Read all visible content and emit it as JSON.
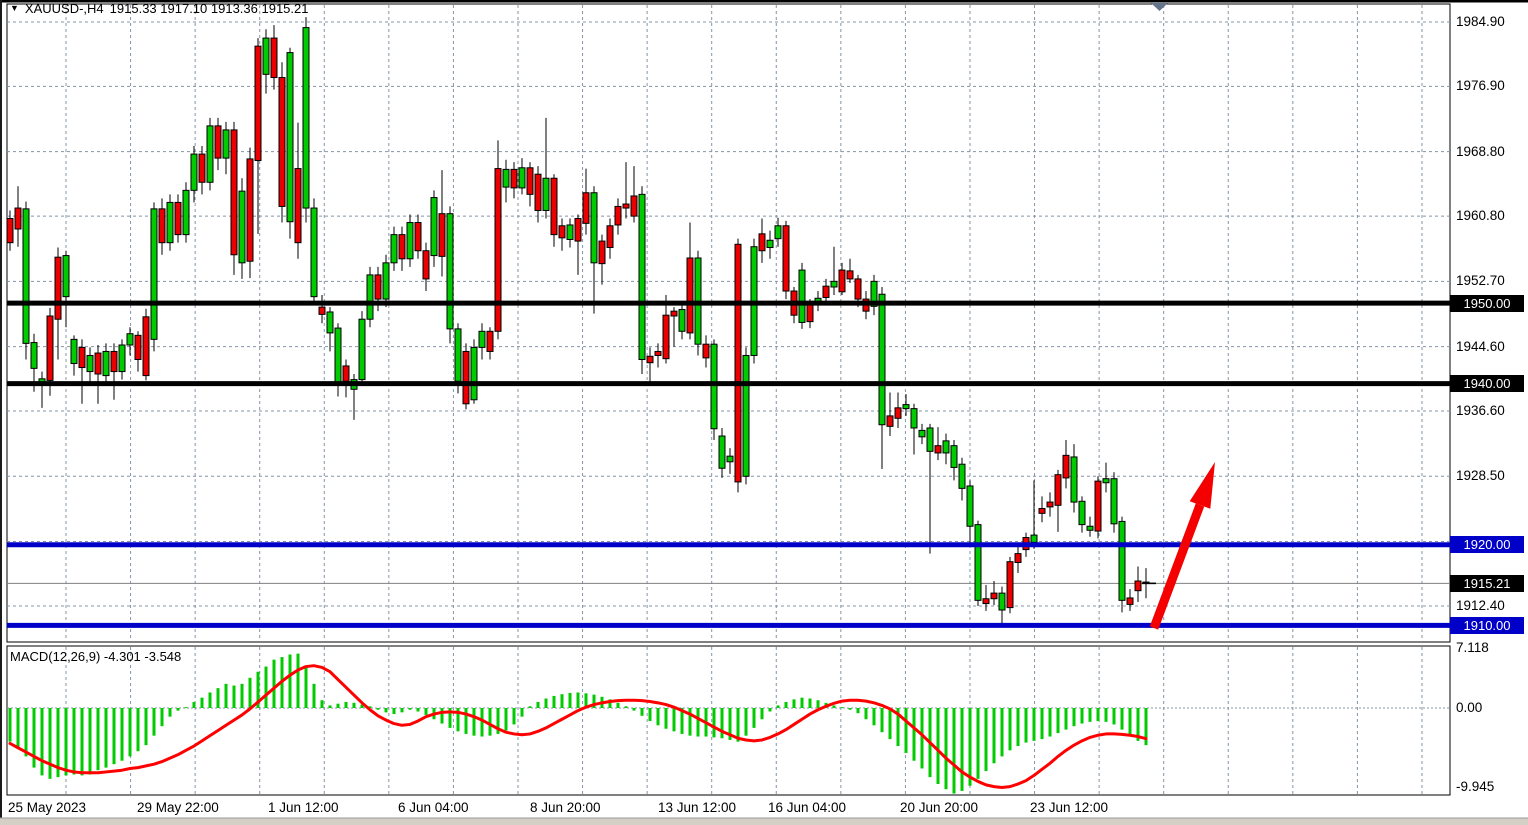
{
  "window": {
    "title_symbol": "XAUUSD-,H4",
    "title_ohlc": "1915.33 1917.10 1913.36 1915.21"
  },
  "indicator_caption": "MACD(12,26,9) -4.301 -3.548",
  "price_axis": {
    "ticks": [
      "1984.90",
      "1976.90",
      "1968.80",
      "1960.80",
      "1952.70",
      "1944.60",
      "1936.60",
      "1928.50",
      "1920.40",
      "1912.40"
    ],
    "badges": [
      {
        "label": "1950.00",
        "type": "black"
      },
      {
        "label": "1940.00",
        "type": "black"
      },
      {
        "label": "1920.00",
        "type": "blue"
      },
      {
        "label": "1915.21",
        "type": "black"
      },
      {
        "label": "1910.00",
        "type": "blue"
      }
    ]
  },
  "macd_axis": {
    "ticks": [
      "7.118",
      "0.00",
      "-9.945"
    ]
  },
  "time_axis": {
    "labels": [
      "25 May 2023",
      "29 May 22:00",
      "1 Jun 12:00",
      "6 Jun 04:00",
      "8 Jun 20:00",
      "13 Jun 12:00",
      "16 Jun 04:00",
      "20 Jun 20:00",
      "23 Jun 12:00"
    ]
  },
  "colors": {
    "bull": "#00CB00",
    "bear": "#EA0000",
    "wick": "#000000",
    "grid": "#8494A8",
    "blue_line": "#0000C8",
    "black_line": "#000000",
    "signal": "#FF0000",
    "arrow": "#F40000",
    "current_price_line": "#808080",
    "scroll_marker": "#64748B"
  },
  "chart_data": {
    "type": "candlestick",
    "symbol": "XAUUSD-",
    "timeframe": "H4",
    "title": "XAUUSD-,H4 1915.33 1917.10 1913.36 1915.21",
    "current_bar": {
      "open": 1915.33,
      "high": 1917.1,
      "low": 1913.36,
      "close": 1915.21
    },
    "price_ylim": [
      1907.93,
      1987.13
    ],
    "price_tick_values": [
      1984.9,
      1976.9,
      1968.8,
      1960.8,
      1952.7,
      1944.6,
      1936.6,
      1928.5,
      1920.4,
      1912.4
    ],
    "hlines": [
      {
        "price": 1950.0,
        "color": "black",
        "label": "1950.00"
      },
      {
        "price": 1940.0,
        "color": "black",
        "label": "1940.00"
      },
      {
        "price": 1920.0,
        "color": "blue",
        "label": "1920.00"
      },
      {
        "price": 1910.0,
        "color": "blue",
        "label": "1910.00"
      }
    ],
    "current_price": 1915.21,
    "annotations": [
      {
        "type": "arrow-up-right",
        "from_price_area": "1910 support",
        "note": "bullish arrow"
      }
    ],
    "x_tick_labels": [
      "25 May 2023",
      "29 May 22:00",
      "1 Jun 12:00",
      "6 Jun 04:00",
      "8 Jun 20:00",
      "13 Jun 12:00",
      "16 Jun 04:00",
      "20 Jun 20:00",
      "23 Jun 12:00"
    ],
    "candles": [
      [
        1960.5,
        1961.5,
        1956.5,
        1957.5
      ],
      [
        1961.8,
        1964.5,
        1957.0,
        1959.2
      ],
      [
        1945.0,
        1962.6,
        1943.0,
        1961.7
      ],
      [
        1941.9,
        1946.2,
        1939.0,
        1945.1
      ],
      [
        1940.0,
        1941.5,
        1937.0,
        1940.6
      ],
      [
        1948.4,
        1949.4,
        1938.5,
        1940.4
      ],
      [
        1955.7,
        1956.9,
        1943.0,
        1948.0
      ],
      [
        1950.8,
        1956.5,
        1947.0,
        1955.9
      ],
      [
        1942.5,
        1946.0,
        1941.0,
        1945.5
      ],
      [
        1944.5,
        1945.5,
        1937.5,
        1942.0
      ],
      [
        1941.5,
        1944.5,
        1940.0,
        1943.5
      ],
      [
        1943.8,
        1944.8,
        1937.5,
        1941.2
      ],
      [
        1941.0,
        1945.0,
        1940.0,
        1944.0
      ],
      [
        1944.0,
        1945.0,
        1938.0,
        1941.5
      ],
      [
        1941.5,
        1945.5,
        1940.5,
        1944.8
      ],
      [
        1944.8,
        1947.0,
        1943.5,
        1946.2
      ],
      [
        1946.0,
        1946.5,
        1941.5,
        1943.0
      ],
      [
        1948.3,
        1949.3,
        1940.4,
        1941.0
      ],
      [
        1945.5,
        1962.5,
        1944.0,
        1961.7
      ],
      [
        1961.7,
        1963.0,
        1956.0,
        1957.5
      ],
      [
        1957.5,
        1963.5,
        1956.5,
        1962.5
      ],
      [
        1962.5,
        1963.5,
        1957.5,
        1958.5
      ],
      [
        1958.5,
        1965.0,
        1957.5,
        1964.0
      ],
      [
        1964.0,
        1969.5,
        1962.5,
        1968.5
      ],
      [
        1968.5,
        1969.5,
        1963.5,
        1965.0
      ],
      [
        1965.0,
        1973.0,
        1964.0,
        1972.0
      ],
      [
        1972.0,
        1973.0,
        1966.5,
        1968.0
      ],
      [
        1968.0,
        1972.5,
        1966.0,
        1971.5
      ],
      [
        1971.5,
        1972.5,
        1953.5,
        1956.0
      ],
      [
        1955.0,
        1965.5,
        1953.0,
        1963.9
      ],
      [
        1967.9,
        1969.3,
        1953.1,
        1955.2
      ],
      [
        1981.9,
        1982.9,
        1958.6,
        1967.7
      ],
      [
        1978.4,
        1984.0,
        1976.0,
        1982.9
      ],
      [
        1982.9,
        1984.5,
        1976.5,
        1978.0
      ],
      [
        1978.0,
        1979.9,
        1960.0,
        1962.0
      ],
      [
        1960.1,
        1981.7,
        1958.0,
        1981.1
      ],
      [
        1966.7,
        1972.4,
        1955.5,
        1957.5
      ],
      [
        1961.8,
        1985.5,
        1960.0,
        1984.2
      ],
      [
        1950.8,
        1963.0,
        1950.0,
        1961.8
      ],
      [
        1949.5,
        1951.0,
        1947.5,
        1948.6
      ],
      [
        1946.3,
        1949.5,
        1944.0,
        1948.9
      ],
      [
        1940.2,
        1947.5,
        1938.4,
        1946.9
      ],
      [
        1942.2,
        1943.0,
        1938.3,
        1940.3
      ],
      [
        1939.3,
        1941.2,
        1935.5,
        1940.5
      ],
      [
        1940.5,
        1949.0,
        1940.0,
        1948.0
      ],
      [
        1948.0,
        1954.5,
        1947.0,
        1953.5
      ],
      [
        1953.5,
        1954.5,
        1949.0,
        1950.5
      ],
      [
        1950.5,
        1956.0,
        1949.5,
        1955.0
      ],
      [
        1955.0,
        1959.5,
        1954.0,
        1958.5
      ],
      [
        1958.5,
        1959.5,
        1954.0,
        1955.5
      ],
      [
        1955.5,
        1961.0,
        1954.5,
        1960.0
      ],
      [
        1960.0,
        1961.0,
        1955.5,
        1956.5
      ],
      [
        1956.5,
        1957.5,
        1951.5,
        1953.0
      ],
      [
        1955.9,
        1964.0,
        1954.5,
        1963.1
      ],
      [
        1961.1,
        1966.5,
        1953.3,
        1955.8
      ],
      [
        1946.8,
        1962.0,
        1945.0,
        1961.1
      ],
      [
        1940.3,
        1947.5,
        1938.8,
        1946.8
      ],
      [
        1944.0,
        1945.0,
        1936.8,
        1937.5
      ],
      [
        1938.0,
        1945.5,
        1937.5,
        1944.5
      ],
      [
        1944.5,
        1947.5,
        1943.0,
        1946.5
      ],
      [
        1946.5,
        1947.0,
        1943.0,
        1944.0
      ],
      [
        1966.7,
        1970.2,
        1945.5,
        1946.5
      ],
      [
        1964.4,
        1967.8,
        1962.5,
        1966.6
      ],
      [
        1966.6,
        1967.5,
        1963.0,
        1964.3
      ],
      [
        1964.3,
        1968.0,
        1963.5,
        1966.8
      ],
      [
        1966.8,
        1967.5,
        1962.0,
        1963.5
      ],
      [
        1966.0,
        1967.0,
        1960.0,
        1961.5
      ],
      [
        1961.5,
        1973.0,
        1960.5,
        1965.5
      ],
      [
        1965.5,
        1966.0,
        1957.0,
        1958.5
      ],
      [
        1959.6,
        1960.5,
        1956.5,
        1958.1
      ],
      [
        1957.9,
        1960.5,
        1956.9,
        1959.7
      ],
      [
        1960.5,
        1961.0,
        1953.5,
        1957.7
      ],
      [
        1963.7,
        1966.7,
        1958.5,
        1959.9
      ],
      [
        1955.0,
        1964.5,
        1948.7,
        1963.7
      ],
      [
        1957.7,
        1958.5,
        1952.3,
        1954.9
      ],
      [
        1959.6,
        1960.5,
        1955.5,
        1956.9
      ],
      [
        1962.0,
        1963.0,
        1958.5,
        1959.7
      ],
      [
        1962.3,
        1967.5,
        1960.5,
        1961.8
      ],
      [
        1963.3,
        1967.0,
        1960.0,
        1960.8
      ],
      [
        1943.0,
        1964.5,
        1941.2,
        1963.5
      ],
      [
        1943.4,
        1944.5,
        1940.0,
        1942.6
      ],
      [
        1944.0,
        1945.0,
        1942.0,
        1943.5
      ],
      [
        1948.5,
        1951.0,
        1942.5,
        1943.1
      ],
      [
        1949.0,
        1949.5,
        1944.6,
        1948.4
      ],
      [
        1946.5,
        1950.0,
        1945.5,
        1949.2
      ],
      [
        1955.6,
        1960.0,
        1945.5,
        1946.3
      ],
      [
        1944.9,
        1956.5,
        1943.5,
        1955.6
      ],
      [
        1944.9,
        1946.0,
        1942.0,
        1943.2
      ],
      [
        1934.4,
        1945.5,
        1933.0,
        1944.9
      ],
      [
        1929.5,
        1934.5,
        1928.3,
        1933.5
      ],
      [
        1930.3,
        1932.0,
        1928.8,
        1931.0
      ],
      [
        1957.3,
        1958.0,
        1926.5,
        1927.8
      ],
      [
        1928.5,
        1944.5,
        1927.5,
        1943.5
      ],
      [
        1943.5,
        1958.0,
        1942.5,
        1957.0
      ],
      [
        1958.6,
        1960.5,
        1955.0,
        1956.5
      ],
      [
        1956.9,
        1959.0,
        1955.5,
        1957.8
      ],
      [
        1958.0,
        1960.6,
        1957.0,
        1959.6
      ],
      [
        1959.6,
        1960.2,
        1950.5,
        1951.5
      ],
      [
        1951.5,
        1952.0,
        1947.5,
        1948.5
      ],
      [
        1947.6,
        1955.0,
        1946.8,
        1954.1
      ],
      [
        1949.9,
        1950.5,
        1946.9,
        1947.7
      ],
      [
        1950.2,
        1951.5,
        1949.0,
        1950.6
      ],
      [
        1952.1,
        1953.0,
        1950.0,
        1950.7
      ],
      [
        1952.0,
        1957.0,
        1951.0,
        1952.7
      ],
      [
        1954.1,
        1955.0,
        1951.0,
        1951.4
      ],
      [
        1954.0,
        1955.5,
        1952.5,
        1953.0
      ],
      [
        1953.0,
        1953.5,
        1949.5,
        1950.5
      ],
      [
        1950.5,
        1951.5,
        1948.0,
        1949.0
      ],
      [
        1949.6,
        1953.5,
        1948.5,
        1952.7
      ],
      [
        1934.9,
        1952.0,
        1929.4,
        1951.1
      ],
      [
        1936.0,
        1938.9,
        1933.5,
        1934.7
      ],
      [
        1937.0,
        1938.9,
        1934.5,
        1935.7
      ],
      [
        1936.9,
        1938.7,
        1936.0,
        1937.4
      ],
      [
        1934.5,
        1937.5,
        1931.2,
        1936.9
      ],
      [
        1933.4,
        1935.0,
        1932.5,
        1934.2
      ],
      [
        1931.6,
        1935.0,
        1918.9,
        1934.5
      ],
      [
        1932.3,
        1934.6,
        1930.5,
        1931.4
      ],
      [
        1931.4,
        1933.8,
        1930.0,
        1932.9
      ],
      [
        1929.6,
        1933.0,
        1928.0,
        1932.3
      ],
      [
        1927.0,
        1930.8,
        1925.5,
        1930.0
      ],
      [
        1922.3,
        1928.0,
        1920.0,
        1927.3
      ],
      [
        1913.1,
        1923.0,
        1912.4,
        1922.5
      ],
      [
        1913.3,
        1915.0,
        1911.8,
        1912.7
      ],
      [
        1914.0,
        1915.5,
        1912.5,
        1913.3
      ],
      [
        1911.9,
        1914.8,
        1910.1,
        1914.0
      ],
      [
        1917.9,
        1918.5,
        1911.5,
        1912.2
      ],
      [
        1918.9,
        1920.0,
        1916.5,
        1917.8
      ],
      [
        1920.9,
        1921.5,
        1918.5,
        1919.4
      ],
      [
        1920.3,
        1928.0,
        1919.5,
        1921.2
      ],
      [
        1924.5,
        1926.0,
        1922.8,
        1923.9
      ],
      [
        1925.3,
        1926.5,
        1923.5,
        1924.7
      ],
      [
        1928.7,
        1929.3,
        1921.6,
        1924.9
      ],
      [
        1931.1,
        1933.0,
        1927.0,
        1928.3
      ],
      [
        1925.3,
        1932.5,
        1924.0,
        1930.9
      ],
      [
        1922.5,
        1926.0,
        1921.5,
        1925.4
      ],
      [
        1921.8,
        1923.5,
        1921.0,
        1922.3
      ],
      [
        1927.9,
        1928.5,
        1920.8,
        1921.7
      ],
      [
        1927.7,
        1930.2,
        1926.5,
        1928.2
      ],
      [
        1922.6,
        1929.0,
        1921.5,
        1928.2
      ],
      [
        1913.1,
        1923.5,
        1911.6,
        1922.9
      ],
      [
        1913.4,
        1914.5,
        1911.8,
        1912.6
      ],
      [
        1915.5,
        1917.3,
        1912.9,
        1914.3
      ],
      [
        1915.33,
        1917.1,
        1913.36,
        1915.21
      ]
    ],
    "macd": {
      "label": "MACD(12,26,9)",
      "macd_value": -4.301,
      "signal_value": -3.548,
      "ylim": [
        -10.07,
        7.18
      ],
      "axis_ticks": [
        7.118,
        0.0,
        -9.945
      ],
      "histogram": [
        -3.9,
        -4.7,
        -5.6,
        -6.9,
        -7.8,
        -8.2,
        -8.0,
        -7.8,
        -7.7,
        -7.8,
        -7.7,
        -7.2,
        -6.9,
        -6.5,
        -6.1,
        -5.6,
        -5.0,
        -4.3,
        -3.2,
        -2.1,
        -1.0,
        -0.3,
        0.1,
        0.7,
        1.2,
        1.8,
        2.3,
        2.8,
        2.6,
        2.8,
        3.5,
        4.2,
        4.8,
        5.6,
        5.9,
        6.2,
        6.3,
        4.8,
        2.8,
        0.9,
        0.3,
        0.5,
        0.7,
        0.6,
        0.4,
        0.2,
        -0.2,
        -0.5,
        -0.7,
        -0.5,
        -0.2,
        -0.4,
        -0.8,
        -1.3,
        -1.8,
        -2.3,
        -2.7,
        -3.0,
        -3.2,
        -3.3,
        -3.2,
        -3.0,
        -2.6,
        -1.9,
        -1.0,
        0.2,
        0.7,
        1.1,
        1.4,
        1.6,
        1.75,
        1.8,
        1.7,
        1.55,
        1.3,
        1.0,
        0.6,
        0.2,
        -0.3,
        -0.9,
        -1.5,
        -2.0,
        -2.4,
        -2.7,
        -3.0,
        -3.2,
        -3.3,
        -3.3,
        -3.4,
        -3.5,
        -3.7,
        -3.9,
        -3.2,
        -2.3,
        -1.3,
        -0.4,
        0.3,
        0.7,
        1.0,
        1.2,
        1.1,
        0.9,
        0.6,
        0.3,
        0.1,
        -0.2,
        -0.6,
        -1.3,
        -2.0,
        -2.8,
        -3.6,
        -4.4,
        -5.2,
        -6.1,
        -7.0,
        -8.0,
        -8.8,
        -9.4,
        -9.9,
        -9.6,
        -9.0,
        -8.2,
        -7.3,
        -6.4,
        -5.6,
        -4.9,
        -4.4,
        -4.0,
        -3.8,
        -3.6,
        -3.3,
        -2.9,
        -2.5,
        -2.1,
        -1.8,
        -1.6,
        -1.5,
        -1.6,
        -1.9,
        -2.5,
        -3.2,
        -3.8,
        -4.301
      ],
      "signal": [
        -4.1,
        -4.6,
        -5.1,
        -5.6,
        -6.1,
        -6.5,
        -6.9,
        -7.2,
        -7.4,
        -7.5,
        -7.5,
        -7.5,
        -7.4,
        -7.3,
        -7.2,
        -7.0,
        -6.9,
        -6.7,
        -6.5,
        -6.2,
        -5.8,
        -5.4,
        -4.9,
        -4.4,
        -3.8,
        -3.2,
        -2.6,
        -2.0,
        -1.4,
        -0.8,
        -0.1,
        0.7,
        1.5,
        2.3,
        3.1,
        3.8,
        4.4,
        4.8,
        4.9,
        4.7,
        4.2,
        3.3,
        2.4,
        1.5,
        0.6,
        -0.2,
        -0.9,
        -1.4,
        -1.8,
        -2.0,
        -1.9,
        -1.5,
        -1.0,
        -0.7,
        -0.5,
        -0.45,
        -0.5,
        -0.7,
        -1.0,
        -1.4,
        -1.9,
        -2.4,
        -2.8,
        -3.0,
        -3.1,
        -3.0,
        -2.7,
        -2.3,
        -1.8,
        -1.3,
        -0.8,
        -0.3,
        0.1,
        0.4,
        0.6,
        0.75,
        0.85,
        0.9,
        0.9,
        0.85,
        0.75,
        0.6,
        0.4,
        0.1,
        -0.3,
        -0.7,
        -1.2,
        -1.7,
        -2.2,
        -2.7,
        -3.1,
        -3.5,
        -3.7,
        -3.8,
        -3.7,
        -3.4,
        -3.0,
        -2.5,
        -1.9,
        -1.3,
        -0.7,
        -0.2,
        0.2,
        0.55,
        0.8,
        0.9,
        0.9,
        0.8,
        0.6,
        0.3,
        -0.1,
        -0.7,
        -1.5,
        -2.3,
        -3.1,
        -4.0,
        -4.9,
        -5.8,
        -6.6,
        -7.4,
        -8.0,
        -8.5,
        -8.9,
        -9.1,
        -9.2,
        -9.1,
        -8.8,
        -8.4,
        -7.8,
        -7.1,
        -6.4,
        -5.6,
        -4.9,
        -4.3,
        -3.8,
        -3.4,
        -3.15,
        -3.0,
        -3.0,
        -3.05,
        -3.15,
        -3.3,
        -3.548
      ]
    }
  }
}
